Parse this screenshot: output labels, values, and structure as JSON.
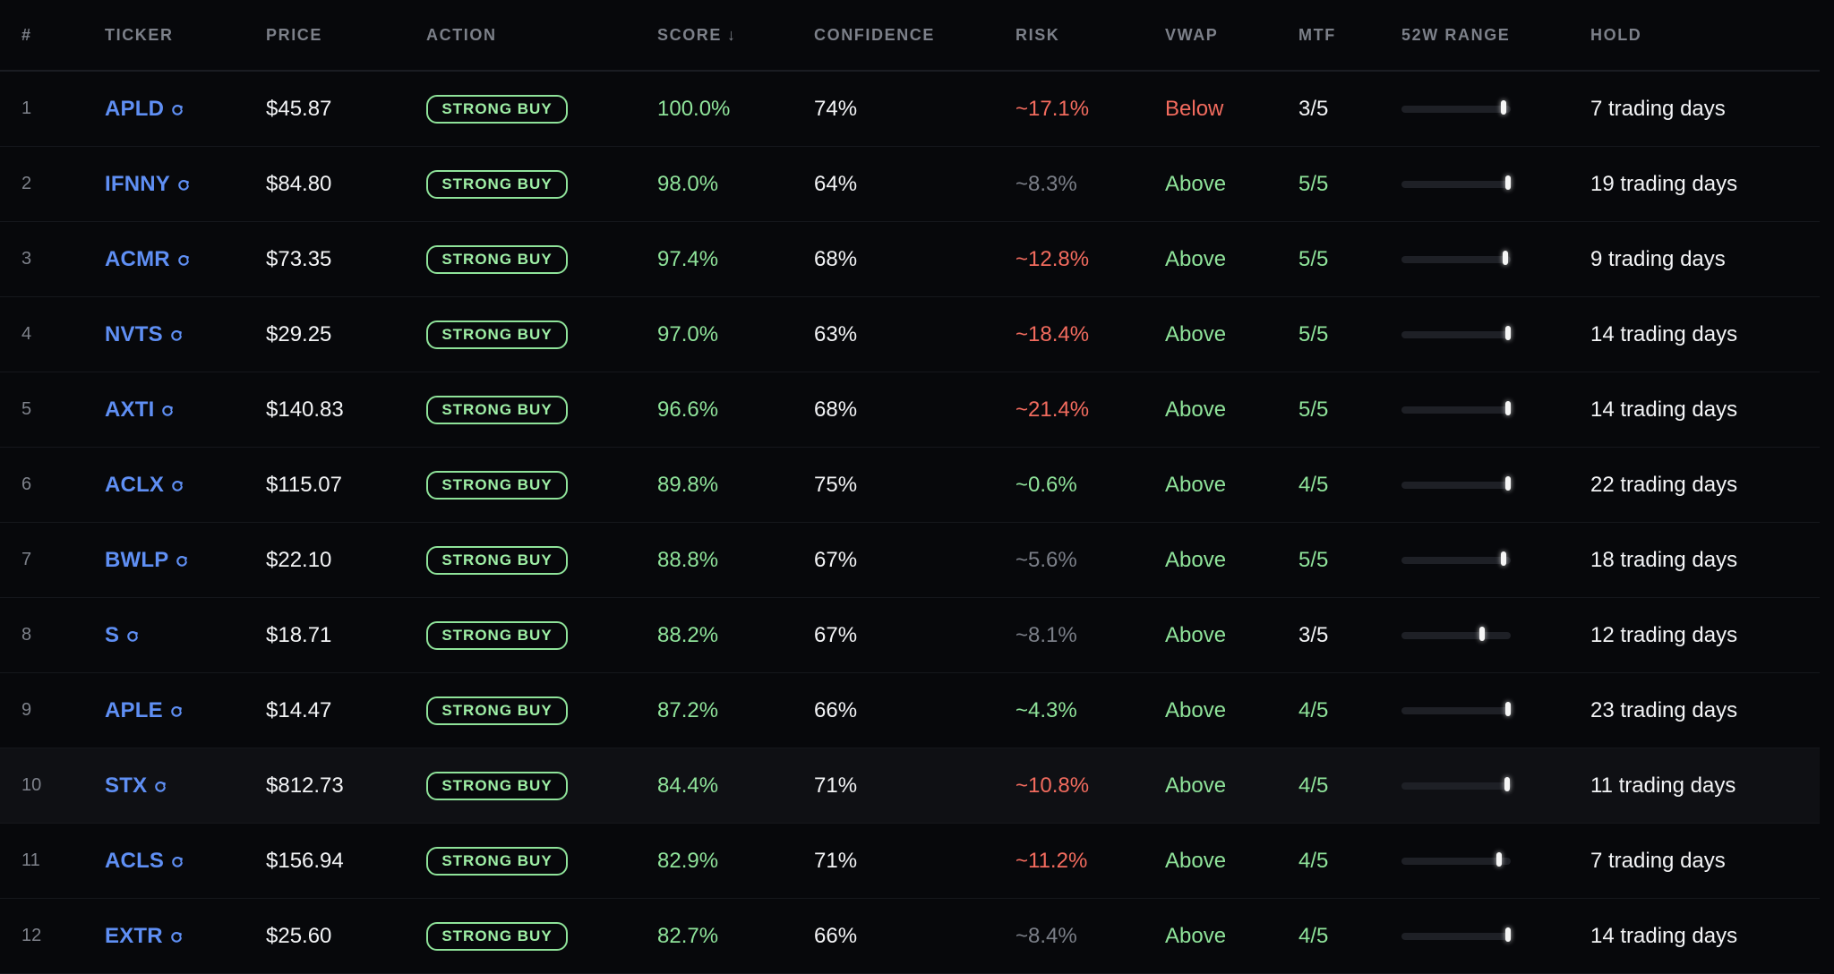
{
  "headers": {
    "rank": "#",
    "ticker": "TICKER",
    "price": "PRICE",
    "action": "ACTION",
    "score": "SCORE",
    "score_sort_icon": "arrow-down-icon",
    "confidence": "CONFIDENCE",
    "risk": "RISK",
    "vwap": "VWAP",
    "mtf": "MTF",
    "range": "52W RANGE",
    "hold": "HOLD"
  },
  "colors": {
    "background": "#07080b",
    "ticker": "#5f8ff4",
    "positive": "#8fe39a",
    "negative": "#f26b5e",
    "muted": "#7b7f88",
    "header_text": "#7c8089"
  },
  "rows": [
    {
      "rank": "1",
      "ticker": "APLD",
      "price": "$45.87",
      "action": "STRONG BUY",
      "score": "100.0%",
      "confidence": "74%",
      "risk": "~17.1%",
      "risk_level": "high",
      "vwap": "Below",
      "mtf": "3/5",
      "range_position": 0.96,
      "hold": "7 trading days",
      "highlighted": false
    },
    {
      "rank": "2",
      "ticker": "IFNNY",
      "price": "$84.80",
      "action": "STRONG BUY",
      "score": "98.0%",
      "confidence": "64%",
      "risk": "~8.3%",
      "risk_level": "mid",
      "vwap": "Above",
      "mtf": "5/5",
      "range_position": 1.0,
      "hold": "19 trading days",
      "highlighted": false
    },
    {
      "rank": "3",
      "ticker": "ACMR",
      "price": "$73.35",
      "action": "STRONG BUY",
      "score": "97.4%",
      "confidence": "68%",
      "risk": "~12.8%",
      "risk_level": "high",
      "vwap": "Above",
      "mtf": "5/5",
      "range_position": 0.97,
      "hold": "9 trading days",
      "highlighted": false
    },
    {
      "rank": "4",
      "ticker": "NVTS",
      "price": "$29.25",
      "action": "STRONG BUY",
      "score": "97.0%",
      "confidence": "63%",
      "risk": "~18.4%",
      "risk_level": "high",
      "vwap": "Above",
      "mtf": "5/5",
      "range_position": 1.0,
      "hold": "14 trading days",
      "highlighted": false
    },
    {
      "rank": "5",
      "ticker": "AXTI",
      "price": "$140.83",
      "action": "STRONG BUY",
      "score": "96.6%",
      "confidence": "68%",
      "risk": "~21.4%",
      "risk_level": "high",
      "vwap": "Above",
      "mtf": "5/5",
      "range_position": 1.0,
      "hold": "14 trading days",
      "highlighted": false
    },
    {
      "rank": "6",
      "ticker": "ACLX",
      "price": "$115.07",
      "action": "STRONG BUY",
      "score": "89.8%",
      "confidence": "75%",
      "risk": "~0.6%",
      "risk_level": "low",
      "vwap": "Above",
      "mtf": "4/5",
      "range_position": 1.0,
      "hold": "22 trading days",
      "highlighted": false
    },
    {
      "rank": "7",
      "ticker": "BWLP",
      "price": "$22.10",
      "action": "STRONG BUY",
      "score": "88.8%",
      "confidence": "67%",
      "risk": "~5.6%",
      "risk_level": "mid",
      "vwap": "Above",
      "mtf": "5/5",
      "range_position": 0.96,
      "hold": "18 trading days",
      "highlighted": false
    },
    {
      "rank": "8",
      "ticker": "S",
      "price": "$18.71",
      "action": "STRONG BUY",
      "score": "88.2%",
      "confidence": "67%",
      "risk": "~8.1%",
      "risk_level": "mid",
      "vwap": "Above",
      "mtf": "3/5",
      "range_position": 0.75,
      "hold": "12 trading days",
      "highlighted": false
    },
    {
      "rank": "9",
      "ticker": "APLE",
      "price": "$14.47",
      "action": "STRONG BUY",
      "score": "87.2%",
      "confidence": "66%",
      "risk": "~4.3%",
      "risk_level": "low",
      "vwap": "Above",
      "mtf": "4/5",
      "range_position": 1.0,
      "hold": "23 trading days",
      "highlighted": false
    },
    {
      "rank": "10",
      "ticker": "STX",
      "price": "$812.73",
      "action": "STRONG BUY",
      "score": "84.4%",
      "confidence": "71%",
      "risk": "~10.8%",
      "risk_level": "high",
      "vwap": "Above",
      "mtf": "4/5",
      "range_position": 0.99,
      "hold": "11 trading days",
      "highlighted": true
    },
    {
      "rank": "11",
      "ticker": "ACLS",
      "price": "$156.94",
      "action": "STRONG BUY",
      "score": "82.9%",
      "confidence": "71%",
      "risk": "~11.2%",
      "risk_level": "high",
      "vwap": "Above",
      "mtf": "4/5",
      "range_position": 0.91,
      "hold": "7 trading days",
      "highlighted": false
    },
    {
      "rank": "12",
      "ticker": "EXTR",
      "price": "$25.60",
      "action": "STRONG BUY",
      "score": "82.7%",
      "confidence": "66%",
      "risk": "~8.4%",
      "risk_level": "mid",
      "vwap": "Above",
      "mtf": "4/5",
      "range_position": 1.0,
      "hold": "14 trading days",
      "highlighted": false
    }
  ]
}
